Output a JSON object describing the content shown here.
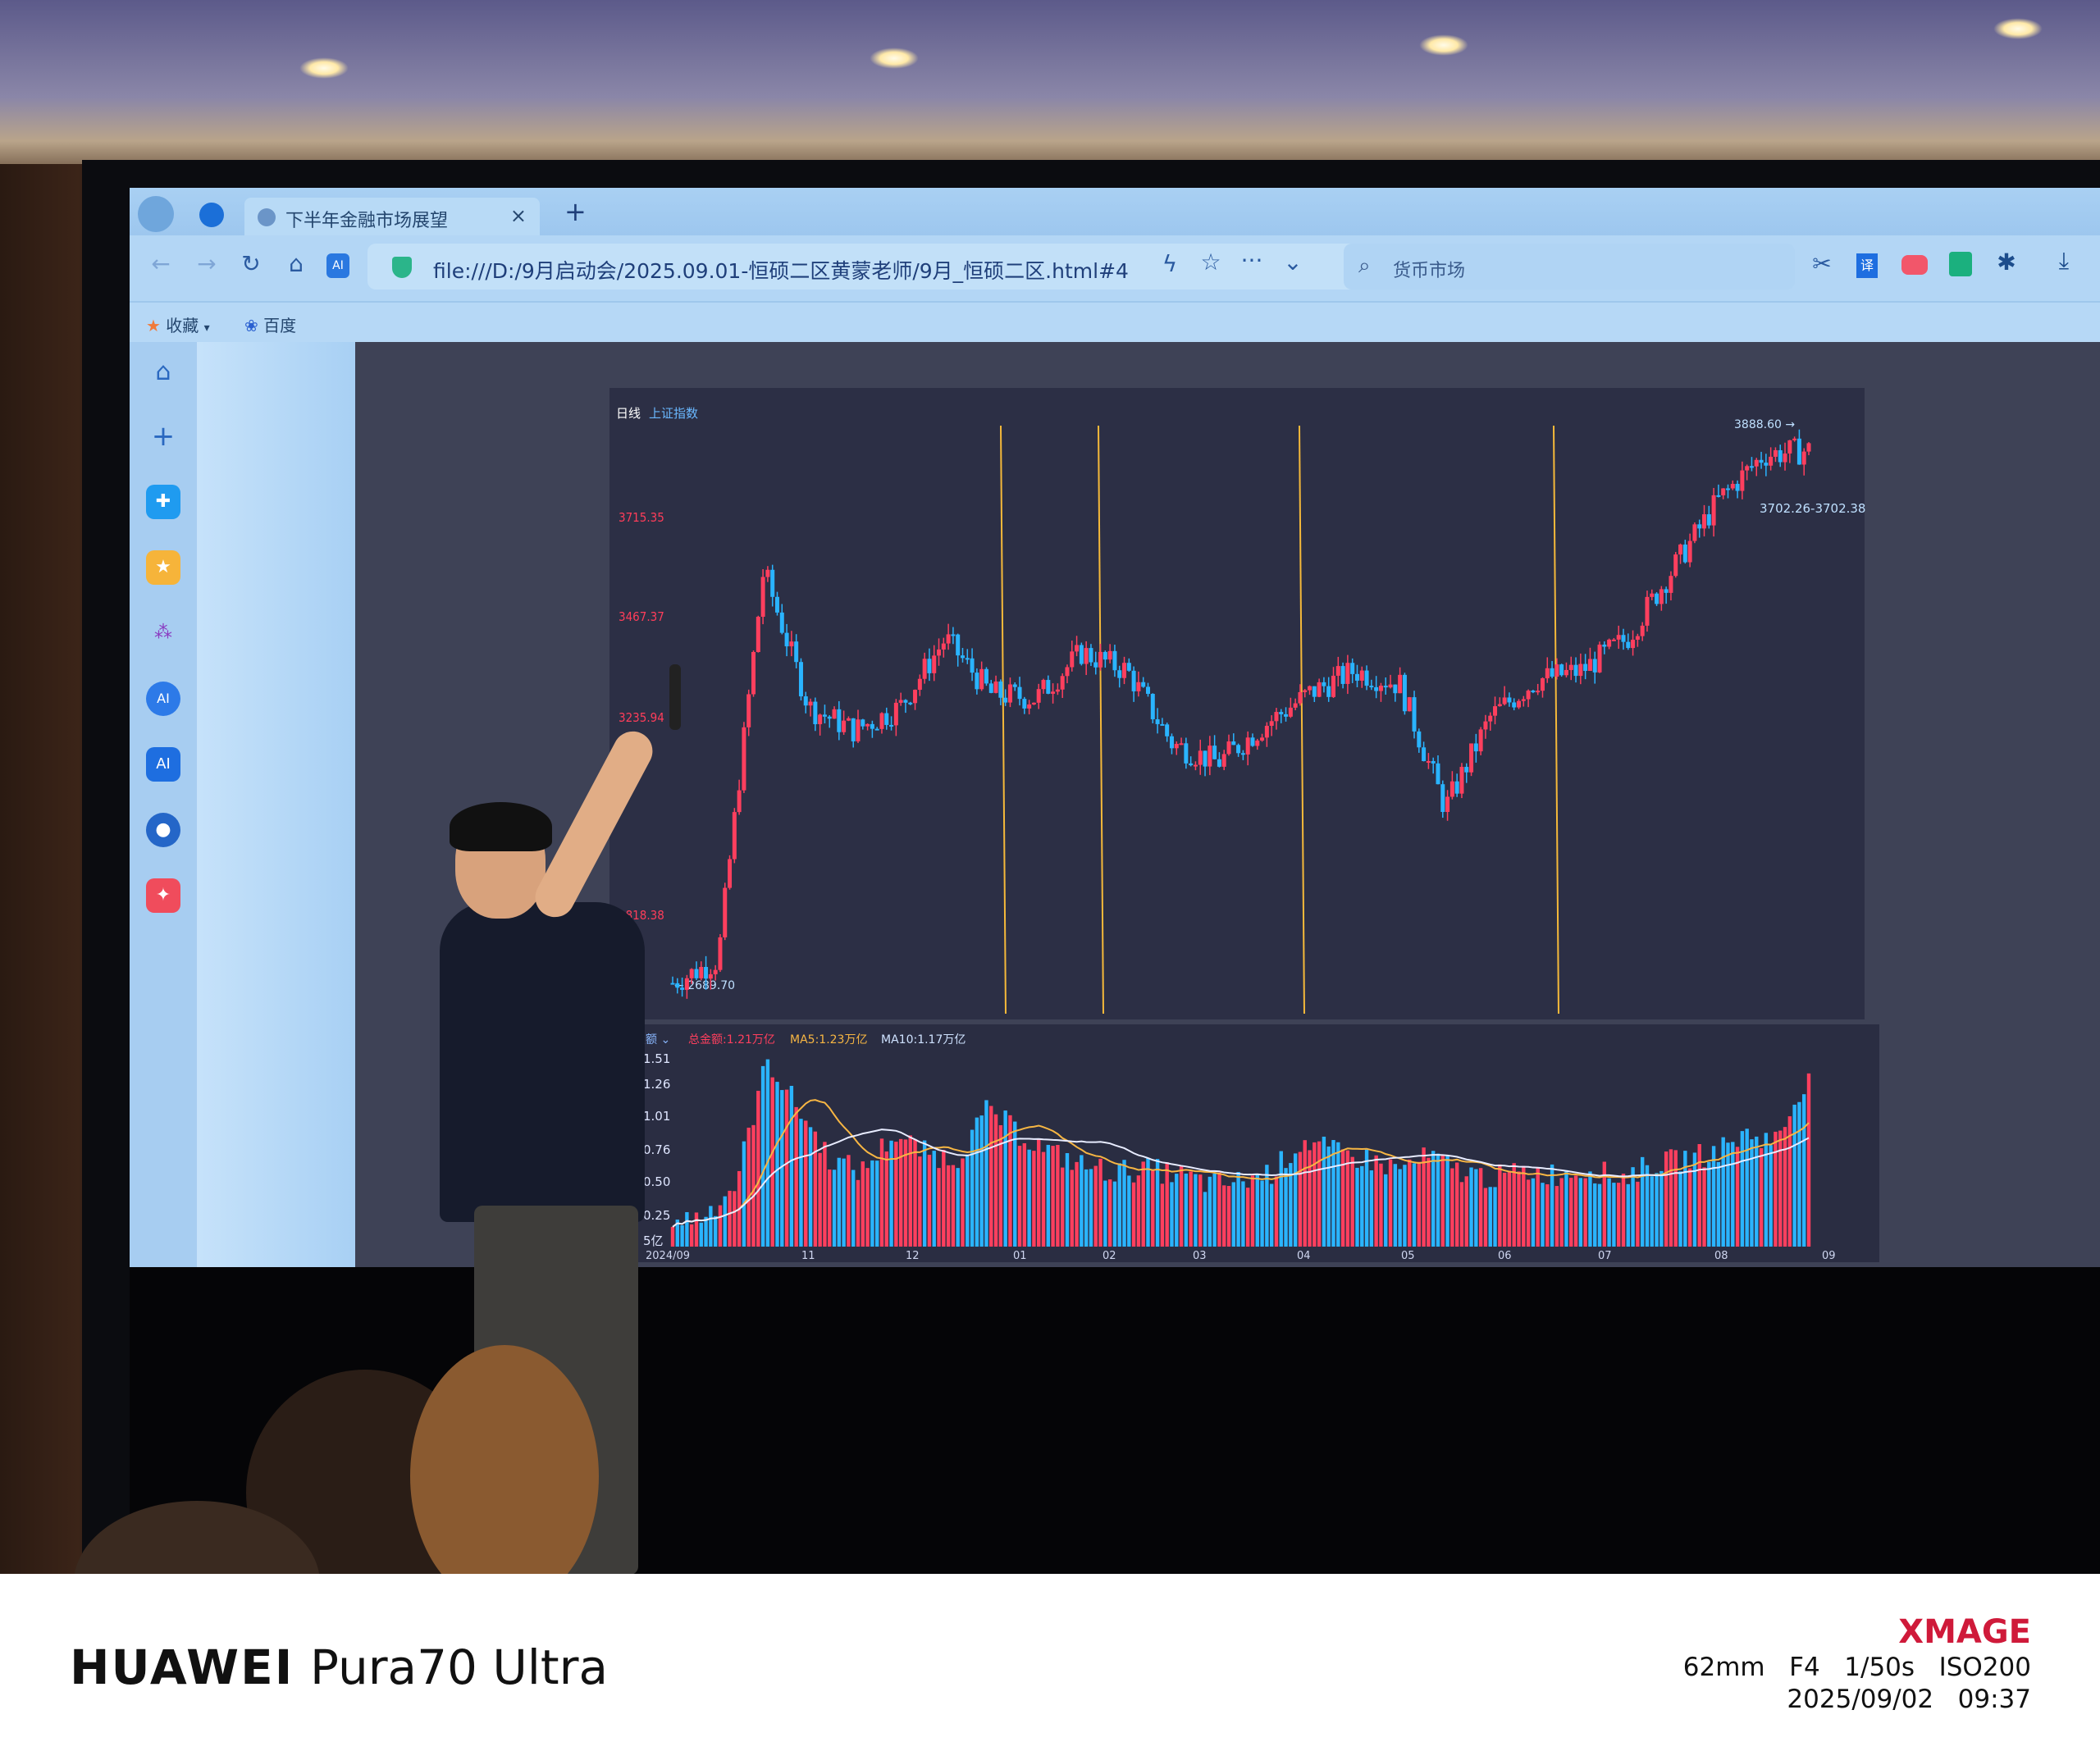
{
  "browser": {
    "tab_title": "下半年金融市场展望",
    "tab_close": "×",
    "new_tab": "+",
    "url": "file:///D:/9月启动会/2025.09.01-恒硕二区黄蒙老师/9月_恒硕二区.html#4",
    "search_value": "货币市场",
    "bookmarks": [
      {
        "label": "收藏",
        "icon": "star-icon"
      },
      {
        "label": "百度",
        "icon": "baidu-paw-icon"
      }
    ],
    "nav_icons": [
      "back-icon",
      "forward-icon",
      "reload-icon",
      "home-icon",
      "ai-icon"
    ],
    "toolbar_icons": [
      "lightning-icon",
      "star-icon",
      "more-icon",
      "chevron-down-icon",
      "scissors-icon",
      "translate-icon",
      "game-icon",
      "book-icon",
      "extension-icon",
      "download-icon"
    ],
    "translate_glyph": "译",
    "ai_glyph": "AI",
    "sidebar_icons": [
      "home-icon",
      "plus-icon",
      "app-icon",
      "star-icon",
      "graph-icon",
      "ai-circle-icon",
      "ai-icon",
      "chat-icon",
      "game-icon"
    ]
  },
  "chart": {
    "period": "日线",
    "index_name": "上证指数",
    "price_labels": [
      "3715.35",
      "3467.37",
      "3235.94",
      "2818.38"
    ],
    "low_label": "2689.70",
    "high_label": "3888.60",
    "last_label": "3702.26-3702.38",
    "colors": {
      "up": "#ff3f5e",
      "down": "#2ab4ff",
      "marker": "#f5b93a",
      "ma5": "#f7b643",
      "ma10": "#e8ecff"
    },
    "price_path": [
      [
        "2024/09",
        2700
      ],
      [
        "2024/09",
        2750
      ],
      [
        "2024/10",
        3600
      ],
      [
        "2024/10",
        3300
      ],
      [
        "2024/10",
        3250
      ],
      [
        "2024/10",
        3300
      ],
      [
        "2024/11",
        3450
      ],
      [
        "2024/11",
        3330
      ],
      [
        "2024/11",
        3320
      ],
      [
        "2024/12",
        3420
      ],
      [
        "2024/12",
        3380
      ],
      [
        "2025/01",
        3220
      ],
      [
        "2025/01",
        3180
      ],
      [
        "2025/02",
        3260
      ],
      [
        "2025/02",
        3330
      ],
      [
        "2025/03",
        3380
      ],
      [
        "2025/03",
        3350
      ],
      [
        "2025/04",
        3080
      ],
      [
        "2025/04",
        3280
      ],
      [
        "2025/05",
        3360
      ],
      [
        "2025/06",
        3380
      ],
      [
        "2025/06",
        3450
      ],
      [
        "2025/07",
        3600
      ],
      [
        "2025/08",
        3750
      ],
      [
        "2025/08",
        3850
      ],
      [
        "2025/09",
        3860
      ]
    ],
    "volume": {
      "label": "成交额",
      "total": "总金额:1.21万亿",
      "ma5": "MA5:1.23万亿",
      "ma10": "MA10:1.17万亿",
      "y_labels": [
        "1.51",
        "1.26",
        "1.01",
        "0.76",
        "0.50",
        "0.25",
        "5亿"
      ],
      "x_labels": [
        "2024/09",
        "11",
        "12",
        "01",
        "02",
        "03",
        "04",
        "05",
        "06",
        "07",
        "08",
        "09"
      ],
      "path": [
        0.2,
        0.25,
        0.5,
        1.5,
        1.1,
        0.7,
        0.6,
        0.9,
        0.75,
        0.7,
        1.1,
        0.9,
        0.75,
        0.65,
        0.6,
        0.62,
        0.58,
        0.5,
        0.52,
        0.6,
        0.85,
        0.75,
        0.7,
        0.62,
        0.72,
        0.6,
        0.55,
        0.6,
        0.58,
        0.62,
        0.55,
        0.65,
        0.7,
        0.75,
        0.9,
        0.85,
        1.4
      ]
    }
  },
  "camera": {
    "brand": "HUAWEI",
    "model": "Pura70 Ultra",
    "logo": "XMAGE",
    "exif": "62mm   F4   1/50s   ISO200",
    "datetime": "2025/09/02   09:37"
  }
}
